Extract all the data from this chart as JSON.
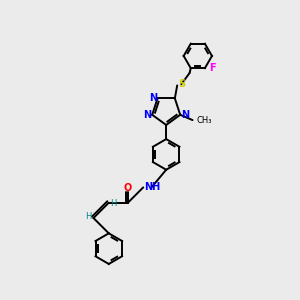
{
  "bg_color": "#ebebeb",
  "line_color": "#000000",
  "nitrogen_color": "#0000ff",
  "oxygen_color": "#ff0000",
  "sulfur_color": "#cccc00",
  "fluorine_color": "#ff00ff",
  "hydrogen_color": "#008080",
  "lw": 1.4,
  "fs": 7,
  "fs_small": 6,
  "xlim": [
    0,
    10
  ],
  "ylim": [
    0,
    10
  ]
}
